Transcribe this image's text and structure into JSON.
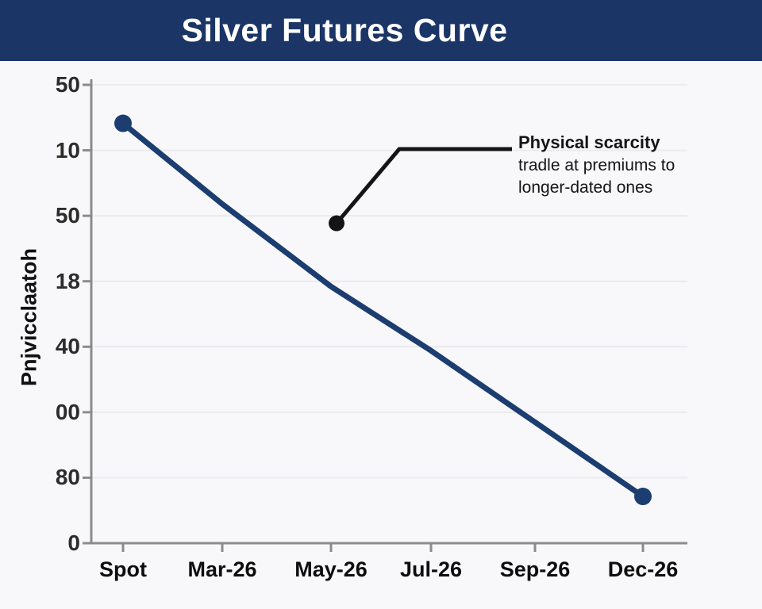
{
  "header": {
    "title": "Silver Futures Curve",
    "bg_color": "#1a3566",
    "text_color": "#ffffff"
  },
  "chart_data": {
    "type": "line",
    "title": "Silver Futures Curve",
    "categories": [
      "Spot",
      "Mar-26",
      "May-26",
      "Jul-26",
      "Sep-26",
      "Dec-26"
    ],
    "values": [
      45.8,
      37.0,
      28.0,
      21.0,
      13.2,
      5.1
    ],
    "ylabel": "Pnjvicclaatoh",
    "xlabel": "",
    "y_tick_labels": [
      "50",
      "10",
      "50",
      "18",
      "40",
      "00",
      "80",
      "0"
    ],
    "ylim": [
      0,
      50
    ],
    "grid": true,
    "legend": "none",
    "line_color": "#1c3d70",
    "marker_color": "#1c3d70",
    "markers": "endpoints-only",
    "axis_color": "#8b8b8b",
    "annotation": {
      "title": "Physical scarcity",
      "line2": "tradle at premiums to",
      "line3": "longer-dated ones",
      "anchor_category": "May-26",
      "anchor_value": 34.9,
      "color": "#141414"
    }
  }
}
